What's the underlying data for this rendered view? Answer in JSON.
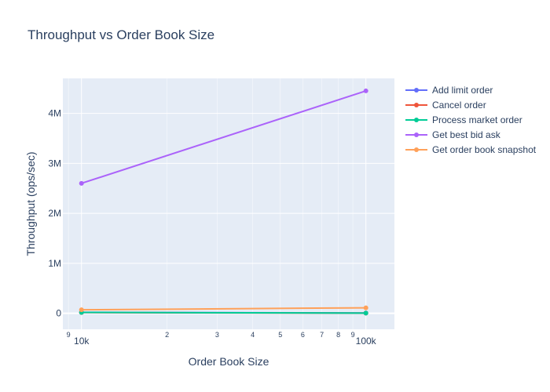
{
  "chart_data": {
    "type": "line",
    "title": "Throughput vs Order Book Size",
    "xlabel": "Order Book Size",
    "ylabel": "Throughput (ops/sec)",
    "x_scale": "log",
    "x": [
      10000,
      100000
    ],
    "xlim": [
      8600,
      126000
    ],
    "ylim": [
      -320000,
      4700000
    ],
    "grid": true,
    "legend_position": "right",
    "x_major_ticks": [
      {
        "value": 10000,
        "label": "10k"
      },
      {
        "value": 100000,
        "label": "100k"
      }
    ],
    "x_minor_ticks": [
      {
        "value": 9000,
        "label": "9"
      },
      {
        "value": 20000,
        "label": "2"
      },
      {
        "value": 30000,
        "label": "3"
      },
      {
        "value": 40000,
        "label": "4"
      },
      {
        "value": 50000,
        "label": "5"
      },
      {
        "value": 60000,
        "label": "6"
      },
      {
        "value": 70000,
        "label": "7"
      },
      {
        "value": 80000,
        "label": "8"
      },
      {
        "value": 90000,
        "label": "9"
      }
    ],
    "y_ticks": [
      {
        "value": 0,
        "label": "0"
      },
      {
        "value": 1000000,
        "label": "1M"
      },
      {
        "value": 2000000,
        "label": "2M"
      },
      {
        "value": 3000000,
        "label": "3M"
      },
      {
        "value": 4000000,
        "label": "4M"
      }
    ],
    "series": [
      {
        "name": "Add limit order",
        "color": "#636efa",
        "values": [
          20000,
          5000
        ]
      },
      {
        "name": "Cancel order",
        "color": "#ef553b",
        "values": [
          15000,
          3000
        ]
      },
      {
        "name": "Process market order",
        "color": "#00cc96",
        "values": [
          18000,
          4000
        ]
      },
      {
        "name": "Get best bid ask",
        "color": "#ab63fa",
        "values": [
          2600000,
          4450000
        ]
      },
      {
        "name": "Get order book snapshot",
        "color": "#ffa15a",
        "values": [
          70000,
          110000
        ]
      }
    ]
  }
}
